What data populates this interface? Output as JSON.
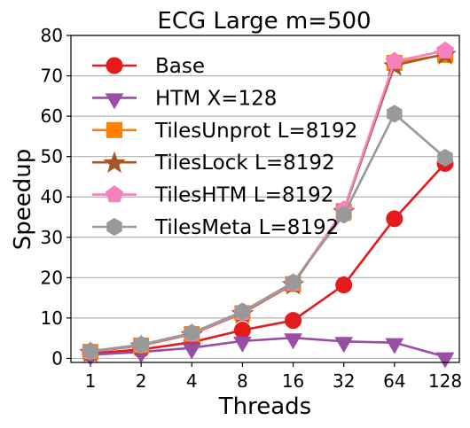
{
  "chart_data": {
    "type": "line",
    "title": "ECG Large m=500",
    "xlabel": "Threads",
    "ylabel": "Speedup",
    "categories": [
      "1",
      "2",
      "4",
      "8",
      "16",
      "32",
      "64",
      "128"
    ],
    "ylim": [
      -1,
      80
    ],
    "yticks": [
      0,
      10,
      20,
      30,
      40,
      50,
      60,
      70,
      80
    ],
    "grid": "horizontal",
    "legend_position": "top-left",
    "series": [
      {
        "name": "Base",
        "color": "#e41a1c",
        "marker": "circle",
        "values": [
          1.2,
          2.2,
          4.0,
          7.0,
          9.4,
          18.2,
          34.6,
          48.3
        ]
      },
      {
        "name": "HTM X=128",
        "color": "#984ea3",
        "marker": "triangle-down",
        "values": [
          0.9,
          1.6,
          2.6,
          4.3,
          5.1,
          4.2,
          3.9,
          0.4
        ]
      },
      {
        "name": "TilesUnprot L=8192",
        "color": "#ff7f00",
        "marker": "square",
        "values": [
          1.6,
          3.2,
          6.0,
          11.2,
          18.4,
          36.5,
          73.2,
          75.2
        ]
      },
      {
        "name": "TilesLock L=8192",
        "color": "#a65628",
        "marker": "star",
        "values": [
          1.6,
          3.2,
          6.0,
          11.2,
          18.4,
          36.5,
          72.6,
          75.4
        ]
      },
      {
        "name": "TilesHTM L=8192",
        "color": "#f781bf",
        "marker": "pentagon",
        "values": [
          1.7,
          3.3,
          6.1,
          11.4,
          18.6,
          36.8,
          73.6,
          76.2
        ]
      },
      {
        "name": "TilesMeta L=8192",
        "color": "#999999",
        "marker": "hexagon",
        "values": [
          1.8,
          3.4,
          6.3,
          11.6,
          18.8,
          35.6,
          60.6,
          49.7
        ]
      }
    ]
  }
}
